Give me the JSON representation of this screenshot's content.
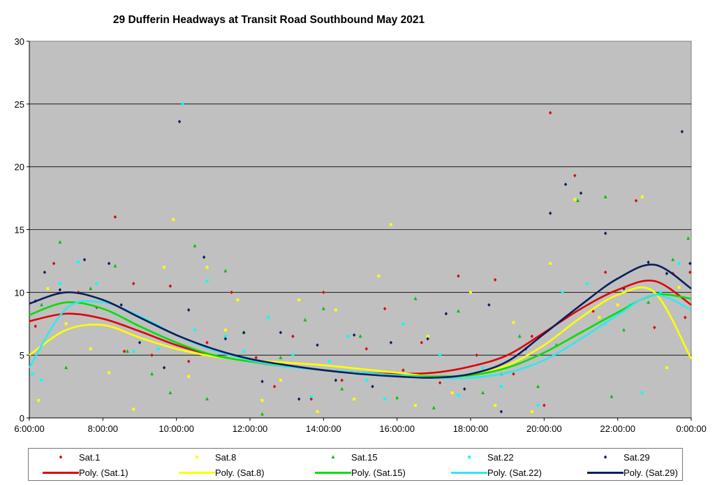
{
  "chart_data": {
    "type": "scatter",
    "title": "29 Dufferin Headways at Transit Road Southbound May 2021",
    "xlabel": "",
    "ylabel": "",
    "xlim": [
      "6:00:00",
      "0:00:00"
    ],
    "ylim": [
      0,
      30
    ],
    "x_ticks": [
      "6:00:00",
      "8:00:00",
      "10:00:00",
      "12:00:00",
      "14:00:00",
      "16:00:00",
      "18:00:00",
      "20:00:00",
      "22:00:00",
      "0:00:00"
    ],
    "y_ticks": [
      "0",
      "5",
      "10",
      "15",
      "20",
      "25",
      "30"
    ],
    "grid": "horizontal",
    "plot_background": "#C0C0C0",
    "legend_position": "bottom",
    "series": [
      {
        "name": "Sat.1",
        "marker": "diamond",
        "color": "#E00000",
        "points": [
          [
            "6:10",
            7.3
          ],
          [
            "6:40",
            12.3
          ],
          [
            "7:20",
            10.0
          ],
          [
            "7:50",
            8.8
          ],
          [
            "8:20",
            16.0
          ],
          [
            "8:35",
            5.3
          ],
          [
            "8:50",
            10.7
          ],
          [
            "9:20",
            5.0
          ],
          [
            "9:50",
            10.5
          ],
          [
            "10:20",
            4.5
          ],
          [
            "10:50",
            6.0
          ],
          [
            "11:30",
            10.0
          ],
          [
            "12:10",
            4.8
          ],
          [
            "12:40",
            2.5
          ],
          [
            "13:10",
            6.5
          ],
          [
            "13:40",
            1.5
          ],
          [
            "14:00",
            10.0
          ],
          [
            "14:30",
            3.0
          ],
          [
            "15:10",
            5.5
          ],
          [
            "15:40",
            8.7
          ],
          [
            "16:10",
            3.8
          ],
          [
            "16:40",
            6.0
          ],
          [
            "17:10",
            2.8
          ],
          [
            "17:40",
            11.3
          ],
          [
            "18:10",
            5.0
          ],
          [
            "18:40",
            11.0
          ],
          [
            "19:10",
            3.5
          ],
          [
            "19:40",
            6.5
          ],
          [
            "20:00",
            1.0
          ],
          [
            "20:10",
            24.3
          ],
          [
            "20:50",
            19.3
          ],
          [
            "21:20",
            8.5
          ],
          [
            "21:40",
            11.6
          ],
          [
            "22:30",
            17.3
          ],
          [
            "23:00",
            7.2
          ],
          [
            "23:30",
            11.5
          ],
          [
            "23:50",
            8.0
          ],
          [
            "23:58",
            11.6
          ]
        ]
      },
      {
        "name": "Sat.8",
        "marker": "square",
        "color": "#FFFF00",
        "points": [
          [
            "6:15",
            1.4
          ],
          [
            "6:30",
            10.3
          ],
          [
            "7:00",
            7.5
          ],
          [
            "7:40",
            5.5
          ],
          [
            "8:10",
            3.6
          ],
          [
            "8:50",
            0.7
          ],
          [
            "9:40",
            12.0
          ],
          [
            "9:55",
            15.8
          ],
          [
            "10:20",
            3.3
          ],
          [
            "10:50",
            12.0
          ],
          [
            "11:20",
            7.0
          ],
          [
            "11:40",
            9.4
          ],
          [
            "12:20",
            1.4
          ],
          [
            "12:50",
            3.0
          ],
          [
            "13:20",
            9.4
          ],
          [
            "13:50",
            0.5
          ],
          [
            "14:20",
            8.6
          ],
          [
            "14:50",
            1.5
          ],
          [
            "15:30",
            11.3
          ],
          [
            "15:50",
            15.4
          ],
          [
            "16:30",
            1.0
          ],
          [
            "16:50",
            6.5
          ],
          [
            "17:30",
            2.0
          ],
          [
            "18:00",
            10.0
          ],
          [
            "18:40",
            1.0
          ],
          [
            "19:10",
            7.6
          ],
          [
            "19:40",
            0.5
          ],
          [
            "20:10",
            12.3
          ],
          [
            "20:50",
            17.4
          ],
          [
            "21:30",
            8.0
          ],
          [
            "22:00",
            9.0
          ],
          [
            "22:40",
            17.6
          ],
          [
            "23:20",
            4.0
          ],
          [
            "23:40",
            10.4
          ]
        ]
      },
      {
        "name": "Sat.15",
        "marker": "triangle",
        "color": "#00C000",
        "points": [
          [
            "6:20",
            9.0
          ],
          [
            "6:50",
            14.0
          ],
          [
            "7:00",
            4.0
          ],
          [
            "7:40",
            10.3
          ],
          [
            "8:20",
            12.1
          ],
          [
            "8:40",
            5.3
          ],
          [
            "9:20",
            3.5
          ],
          [
            "9:50",
            2.0
          ],
          [
            "10:30",
            13.7
          ],
          [
            "10:50",
            1.5
          ],
          [
            "11:20",
            11.7
          ],
          [
            "11:50",
            6.8
          ],
          [
            "12:20",
            0.3
          ],
          [
            "12:50",
            4.8
          ],
          [
            "13:30",
            7.8
          ],
          [
            "14:00",
            8.7
          ],
          [
            "14:30",
            2.3
          ],
          [
            "15:00",
            6.5
          ],
          [
            "15:30",
            3.5
          ],
          [
            "16:00",
            1.6
          ],
          [
            "16:30",
            9.5
          ],
          [
            "17:00",
            0.8
          ],
          [
            "17:40",
            8.5
          ],
          [
            "18:20",
            2.0
          ],
          [
            "18:50",
            3.5
          ],
          [
            "19:20",
            6.5
          ],
          [
            "19:50",
            2.5
          ],
          [
            "20:20",
            5.8
          ],
          [
            "20:55",
            17.3
          ],
          [
            "21:40",
            17.6
          ],
          [
            "21:50",
            1.7
          ],
          [
            "22:10",
            7.0
          ],
          [
            "22:50",
            9.2
          ],
          [
            "23:30",
            12.6
          ],
          [
            "23:55",
            14.3
          ]
        ]
      },
      {
        "name": "Sat.22",
        "marker": "square",
        "color": "#00FFFF",
        "points": [
          [
            "6:05",
            3.5
          ],
          [
            "6:20",
            3.0
          ],
          [
            "6:50",
            10.7
          ],
          [
            "7:20",
            12.4
          ],
          [
            "7:50",
            10.7
          ],
          [
            "8:20",
            8.3
          ],
          [
            "8:50",
            5.3
          ],
          [
            "9:30",
            5.5
          ],
          [
            "10:10",
            25.0
          ],
          [
            "10:30",
            7.0
          ],
          [
            "10:50",
            10.9
          ],
          [
            "11:20",
            6.5
          ],
          [
            "11:50",
            5.3
          ],
          [
            "12:30",
            8.0
          ],
          [
            "13:10",
            5.0
          ],
          [
            "13:40",
            1.7
          ],
          [
            "14:10",
            4.5
          ],
          [
            "14:40",
            6.5
          ],
          [
            "15:10",
            3.0
          ],
          [
            "15:40",
            1.5
          ],
          [
            "16:10",
            7.5
          ],
          [
            "16:40",
            3.5
          ],
          [
            "17:10",
            5.0
          ],
          [
            "17:40",
            1.8
          ],
          [
            "18:20",
            4.0
          ],
          [
            "18:50",
            2.5
          ],
          [
            "19:20",
            5.5
          ],
          [
            "19:50",
            1.0
          ],
          [
            "20:30",
            10.0
          ],
          [
            "21:10",
            10.7
          ],
          [
            "21:40",
            7.5
          ],
          [
            "22:20",
            9.0
          ],
          [
            "22:40",
            2.0
          ],
          [
            "23:10",
            10.0
          ],
          [
            "23:40",
            12.3
          ]
        ]
      },
      {
        "name": "Sat.29",
        "marker": "diamond",
        "color": "#0A1E5A",
        "points": [
          [
            "6:10",
            9.3
          ],
          [
            "6:25",
            11.6
          ],
          [
            "6:50",
            10.2
          ],
          [
            "7:30",
            12.6
          ],
          [
            "8:10",
            12.3
          ],
          [
            "8:30",
            9.0
          ],
          [
            "9:00",
            6.0
          ],
          [
            "9:40",
            4.0
          ],
          [
            "10:05",
            23.6
          ],
          [
            "10:20",
            8.6
          ],
          [
            "10:45",
            12.8
          ],
          [
            "11:20",
            6.3
          ],
          [
            "11:50",
            6.8
          ],
          [
            "12:20",
            2.9
          ],
          [
            "12:50",
            6.8
          ],
          [
            "13:20",
            1.5
          ],
          [
            "13:50",
            5.8
          ],
          [
            "14:20",
            3.0
          ],
          [
            "14:50",
            6.6
          ],
          [
            "15:20",
            2.5
          ],
          [
            "15:50",
            6.0
          ],
          [
            "16:20",
            3.3
          ],
          [
            "16:50",
            6.3
          ],
          [
            "17:20",
            8.3
          ],
          [
            "17:50",
            2.3
          ],
          [
            "18:30",
            9.0
          ],
          [
            "18:50",
            0.5
          ],
          [
            "19:30",
            5.5
          ],
          [
            "20:10",
            16.3
          ],
          [
            "20:35",
            18.6
          ],
          [
            "21:00",
            17.9
          ],
          [
            "21:40",
            14.7
          ],
          [
            "22:10",
            10.3
          ],
          [
            "22:50",
            12.4
          ],
          [
            "23:20",
            11.5
          ],
          [
            "23:45",
            22.8
          ],
          [
            "23:58",
            12.3
          ]
        ]
      }
    ],
    "trendlines": [
      {
        "name": "Poly. (Sat.1)",
        "color": "#E00000",
        "x": [
          "6:00",
          "7:00",
          "8:00",
          "9:00",
          "10:00",
          "11:00",
          "12:00",
          "13:00",
          "14:00",
          "15:00",
          "16:00",
          "17:00",
          "18:00",
          "19:00",
          "20:00",
          "21:00",
          "22:00",
          "23:00",
          "0:00"
        ],
        "values": [
          7.7,
          8.3,
          7.9,
          6.9,
          5.8,
          5.0,
          4.5,
          4.1,
          3.8,
          3.6,
          3.5,
          3.6,
          4.1,
          5.0,
          6.8,
          8.7,
          10.2,
          10.9,
          9.0
        ]
      },
      {
        "name": "Poly. (Sat.8)",
        "color": "#FFFF00",
        "x": [
          "6:00",
          "7:00",
          "8:00",
          "9:00",
          "10:00",
          "11:00",
          "12:00",
          "13:00",
          "14:00",
          "15:00",
          "16:00",
          "17:00",
          "18:00",
          "19:00",
          "20:00",
          "21:00",
          "22:00",
          "23:00",
          "0:00"
        ],
        "values": [
          5.0,
          7.0,
          7.4,
          6.4,
          5.5,
          4.9,
          4.6,
          4.4,
          4.2,
          3.9,
          3.6,
          3.3,
          3.4,
          4.2,
          5.8,
          8.0,
          9.8,
          10.0,
          4.7
        ]
      },
      {
        "name": "Poly. (Sat.15)",
        "color": "#00E000",
        "x": [
          "6:00",
          "7:00",
          "8:00",
          "9:00",
          "10:00",
          "11:00",
          "12:00",
          "13:00",
          "14:00",
          "15:00",
          "16:00",
          "17:00",
          "18:00",
          "19:00",
          "20:00",
          "21:00",
          "22:00",
          "23:00",
          "0:00"
        ],
        "values": [
          8.2,
          9.2,
          8.7,
          7.3,
          6.0,
          5.0,
          4.5,
          4.1,
          3.8,
          3.6,
          3.4,
          3.3,
          3.4,
          4.0,
          5.2,
          6.8,
          8.4,
          9.8,
          9.5
        ]
      },
      {
        "name": "Poly. (Sat.22)",
        "color": "#33E6F0",
        "x": [
          "6:00",
          "7:00",
          "8:00",
          "9:00",
          "10:00",
          "11:00",
          "12:00",
          "13:00",
          "14:00",
          "15:00",
          "16:00",
          "17:00",
          "18:00",
          "19:00",
          "20:00",
          "21:00",
          "22:00",
          "23:00",
          "0:00"
        ],
        "values": [
          4.0,
          8.7,
          9.2,
          8.1,
          6.6,
          5.4,
          4.6,
          4.1,
          3.8,
          3.6,
          3.4,
          3.2,
          3.2,
          3.6,
          4.6,
          6.3,
          8.2,
          9.8,
          8.6
        ]
      },
      {
        "name": "Poly. (Sat.29)",
        "color": "#0A1E5A",
        "x": [
          "6:00",
          "7:00",
          "8:00",
          "9:00",
          "10:00",
          "11:00",
          "12:00",
          "13:00",
          "14:00",
          "15:00",
          "16:00",
          "17:00",
          "18:00",
          "19:00",
          "20:00",
          "21:00",
          "22:00",
          "23:00",
          "0:00"
        ],
        "values": [
          9.1,
          10.0,
          9.4,
          8.0,
          6.6,
          5.5,
          4.7,
          4.2,
          3.8,
          3.5,
          3.3,
          3.2,
          3.5,
          4.5,
          6.7,
          9.0,
          11.1,
          12.2,
          10.3
        ]
      }
    ]
  }
}
